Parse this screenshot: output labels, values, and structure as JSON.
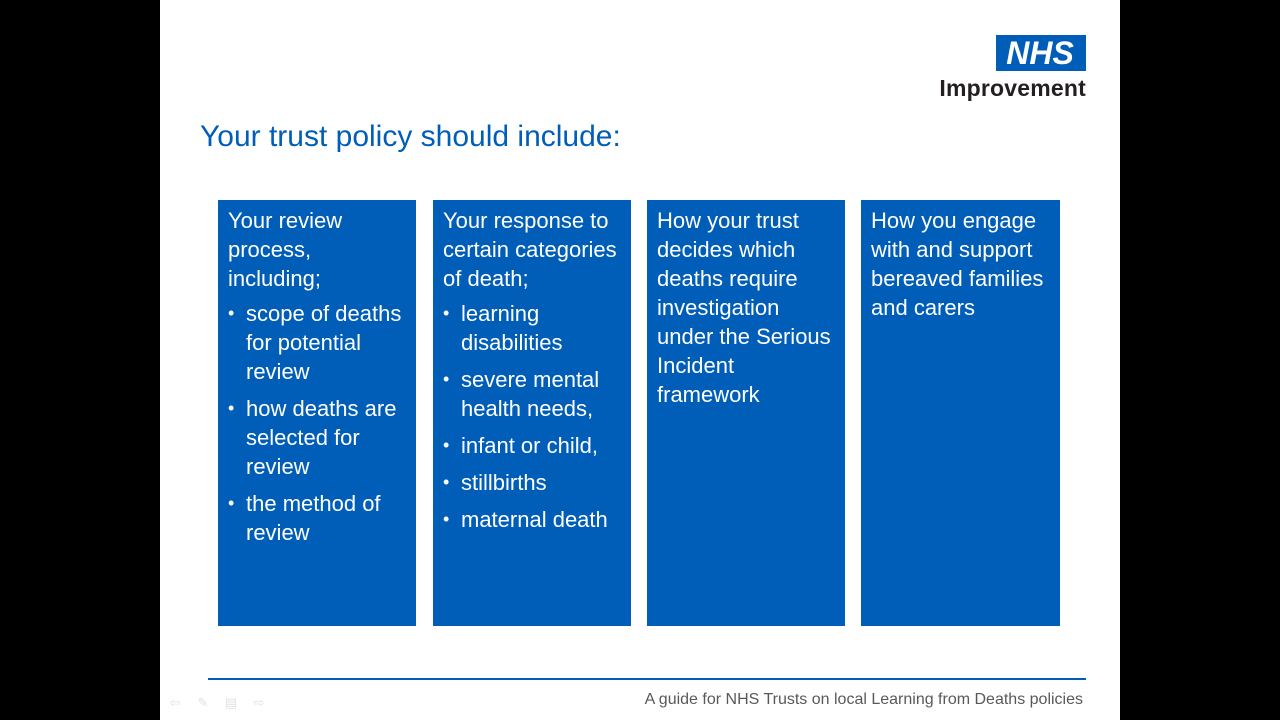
{
  "logo": {
    "badge": "NHS",
    "subtitle": "Improvement"
  },
  "title": "Your trust policy should include:",
  "boxes": [
    {
      "heading": "Your review process, including;",
      "items": [
        "scope of deaths for potential review",
        "how deaths are selected for review",
        "the method of review"
      ]
    },
    {
      "heading": "Your response to certain categories of death;",
      "items": [
        "learning disabilities",
        "severe mental health needs,",
        "infant or child,",
        "stillbirths",
        "maternal death"
      ]
    },
    {
      "heading": "How your trust decides which deaths require investigation under the Serious Incident framework",
      "items": []
    },
    {
      "heading": "How you engage with and support bereaved families and carers",
      "items": []
    }
  ],
  "footer": "A guide for NHS Trusts on local Learning from Deaths policies",
  "colors": {
    "nhs_blue": "#005EB8",
    "background": "#000000",
    "slide": "#FFFFFF"
  },
  "nav_icons": [
    "back-arrow-icon",
    "pen-icon",
    "menu-icon",
    "forward-arrow-icon"
  ]
}
